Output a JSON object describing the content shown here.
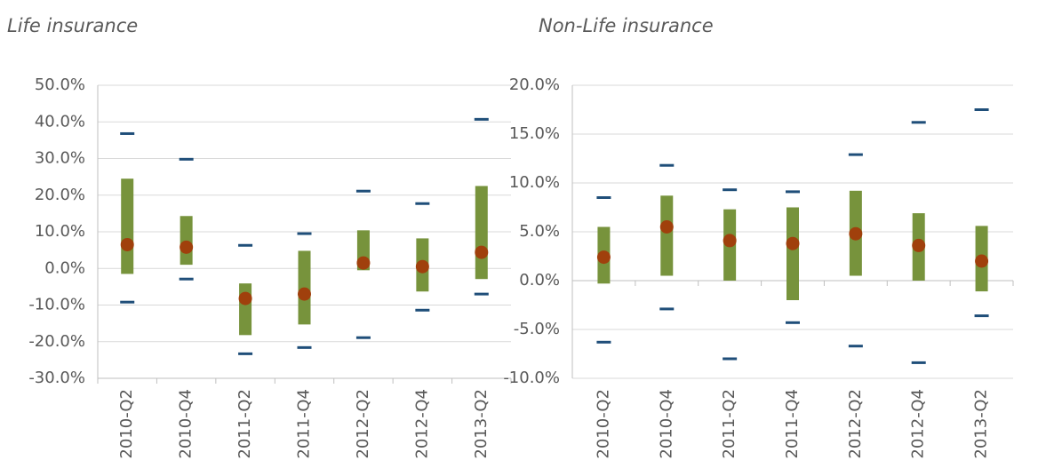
{
  "chart_data": [
    {
      "type": "range",
      "title": "Life insurance",
      "categories": [
        "2010-Q2",
        "2010-Q4",
        "2011-Q2",
        "2011-Q4",
        "2012-Q2",
        "2012-Q4",
        "2013-Q2"
      ],
      "ylim": [
        -30,
        50
      ],
      "yticks": [
        {
          "value": -30,
          "label": "-30.0%"
        },
        {
          "value": -20,
          "label": "-20.0%"
        },
        {
          "value": -10,
          "label": "-10.0%"
        },
        {
          "value": 0,
          "label": "0.0%"
        },
        {
          "value": 10,
          "label": "10.0%"
        },
        {
          "value": 20,
          "label": "20.0%"
        },
        {
          "value": 30,
          "label": "30.0%"
        },
        {
          "value": 40,
          "label": "40.0%"
        },
        {
          "value": 50,
          "label": "50.0%"
        }
      ],
      "grid": true,
      "xaxis_at": "bottom",
      "series": [
        {
          "type": "range",
          "color": "#77933c",
          "values": [
            24.5,
            14.3,
            -4.1,
            4.8,
            10.4,
            8.2,
            22.5
          ],
          "base": [
            -1.5,
            1.0,
            -18.2,
            -15.3,
            -0.5,
            -6.3,
            -2.9
          ]
        },
        {
          "type": "dash",
          "color": "#1f4e79",
          "values": [
            36.8,
            29.8,
            6.3,
            9.5,
            21.1,
            17.7,
            40.7
          ]
        },
        {
          "type": "dash",
          "color": "#1f4e79",
          "values": [
            -9.2,
            -2.9,
            -23.3,
            -21.6,
            -18.9,
            -11.4,
            -7.0
          ]
        },
        {
          "type": "dot",
          "color": "#a0400c",
          "values": [
            6.5,
            5.8,
            -8.2,
            -7.0,
            1.5,
            0.5,
            4.4
          ]
        }
      ]
    },
    {
      "type": "range",
      "title": "Non-Life insurance",
      "categories": [
        "2010-Q2",
        "2010-Q4",
        "2011-Q2",
        "2011-Q4",
        "2012-Q2",
        "2012-Q4",
        "2013-Q2"
      ],
      "ylim": [
        -10,
        20
      ],
      "yticks": [
        {
          "value": -10,
          "label": "-10.0%"
        },
        {
          "value": -5,
          "label": "-5.0%"
        },
        {
          "value": 0,
          "label": "0.0%"
        },
        {
          "value": 5,
          "label": "5.0%"
        },
        {
          "value": 10,
          "label": "10.0%"
        },
        {
          "value": 15,
          "label": "15.0%"
        },
        {
          "value": 20,
          "label": "20.0%"
        }
      ],
      "grid": true,
      "xaxis_at": "zero",
      "series": [
        {
          "type": "range",
          "color": "#77933c",
          "values": [
            5.5,
            8.7,
            7.3,
            7.5,
            9.2,
            6.9,
            5.6
          ],
          "base": [
            -0.3,
            0.5,
            0,
            -2.0,
            0.5,
            0,
            -1.1
          ]
        },
        {
          "type": "dash",
          "color": "#1f4e79",
          "values": [
            8.5,
            11.8,
            9.3,
            9.1,
            12.9,
            16.2,
            17.5
          ]
        },
        {
          "type": "dash",
          "color": "#1f4e79",
          "values": [
            -6.3,
            -2.9,
            -8.0,
            -4.3,
            -6.7,
            -8.4,
            -3.6
          ]
        },
        {
          "type": "dot",
          "color": "#a0400c",
          "values": [
            2.4,
            5.5,
            4.1,
            3.8,
            4.8,
            3.6,
            2.0
          ]
        }
      ]
    }
  ]
}
